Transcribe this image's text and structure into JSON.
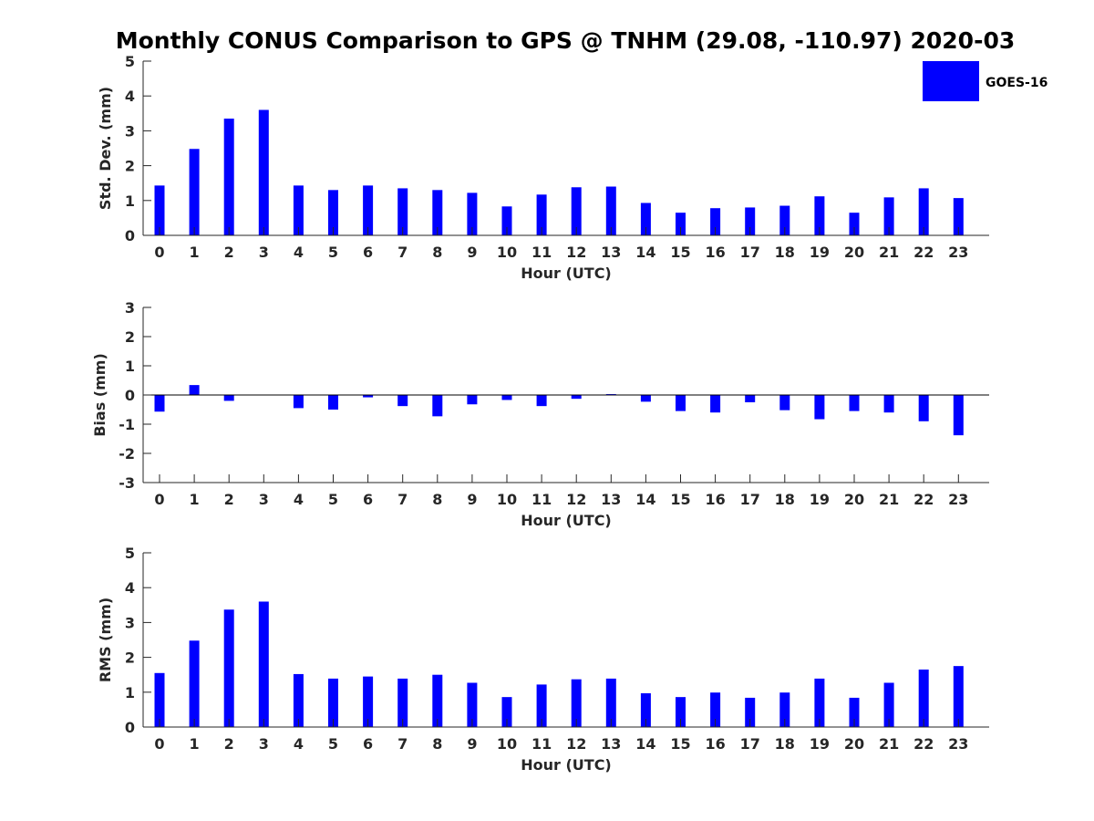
{
  "title": "Monthly CONUS Comparison to GPS @ TNHM (29.08, -110.97) 2020-03",
  "colors": {
    "bar": "#0000ff",
    "axis": "#262626"
  },
  "legend": {
    "label": "GOES-16",
    "placement": "top-right"
  },
  "chart_data": [
    {
      "type": "bar",
      "xlabel": "Hour (UTC)",
      "ylabel": "Std. Dev. (mm)",
      "ylim": [
        0,
        5
      ],
      "yticks": [
        0,
        1,
        2,
        3,
        4,
        5
      ],
      "categories": [
        "0",
        "1",
        "2",
        "3",
        "4",
        "5",
        "6",
        "7",
        "8",
        "9",
        "10",
        "11",
        "12",
        "13",
        "14",
        "15",
        "16",
        "17",
        "18",
        "19",
        "20",
        "21",
        "22",
        "23"
      ],
      "series": [
        {
          "name": "GOES-16",
          "values": [
            1.43,
            2.48,
            3.35,
            3.6,
            1.43,
            1.3,
            1.43,
            1.35,
            1.3,
            1.22,
            0.83,
            1.17,
            1.38,
            1.4,
            0.93,
            0.65,
            0.78,
            0.8,
            0.85,
            1.12,
            0.65,
            1.09,
            1.35,
            1.07
          ]
        }
      ]
    },
    {
      "type": "bar",
      "xlabel": "Hour (UTC)",
      "ylabel": "Bias (mm)",
      "ylim": [
        -3,
        3
      ],
      "yticks": [
        -3,
        -2,
        -1,
        0,
        1,
        2,
        3
      ],
      "categories": [
        "0",
        "1",
        "2",
        "3",
        "4",
        "5",
        "6",
        "7",
        "8",
        "9",
        "10",
        "11",
        "12",
        "13",
        "14",
        "15",
        "16",
        "17",
        "18",
        "19",
        "20",
        "21",
        "22",
        "23"
      ],
      "series": [
        {
          "name": "GOES-16",
          "values": [
            -0.57,
            0.34,
            -0.2,
            0,
            -0.45,
            -0.5,
            -0.08,
            -0.38,
            -0.73,
            -0.32,
            -0.17,
            -0.38,
            -0.13,
            0.03,
            -0.23,
            -0.55,
            -0.6,
            -0.25,
            -0.52,
            -0.83,
            -0.55,
            -0.6,
            -0.9,
            -1.38
          ]
        }
      ]
    },
    {
      "type": "bar",
      "xlabel": "Hour (UTC)",
      "ylabel": "RMS (mm)",
      "ylim": [
        0,
        5
      ],
      "yticks": [
        0,
        1,
        2,
        3,
        4,
        5
      ],
      "categories": [
        "0",
        "1",
        "2",
        "3",
        "4",
        "5",
        "6",
        "7",
        "8",
        "9",
        "10",
        "11",
        "12",
        "13",
        "14",
        "15",
        "16",
        "17",
        "18",
        "19",
        "20",
        "21",
        "22",
        "23"
      ],
      "series": [
        {
          "name": "GOES-16",
          "values": [
            1.55,
            2.48,
            3.37,
            3.6,
            1.52,
            1.39,
            1.45,
            1.39,
            1.5,
            1.27,
            0.86,
            1.22,
            1.37,
            1.39,
            0.97,
            0.86,
            0.99,
            0.84,
            0.99,
            1.39,
            0.84,
            1.27,
            1.65,
            1.75
          ]
        }
      ]
    }
  ]
}
